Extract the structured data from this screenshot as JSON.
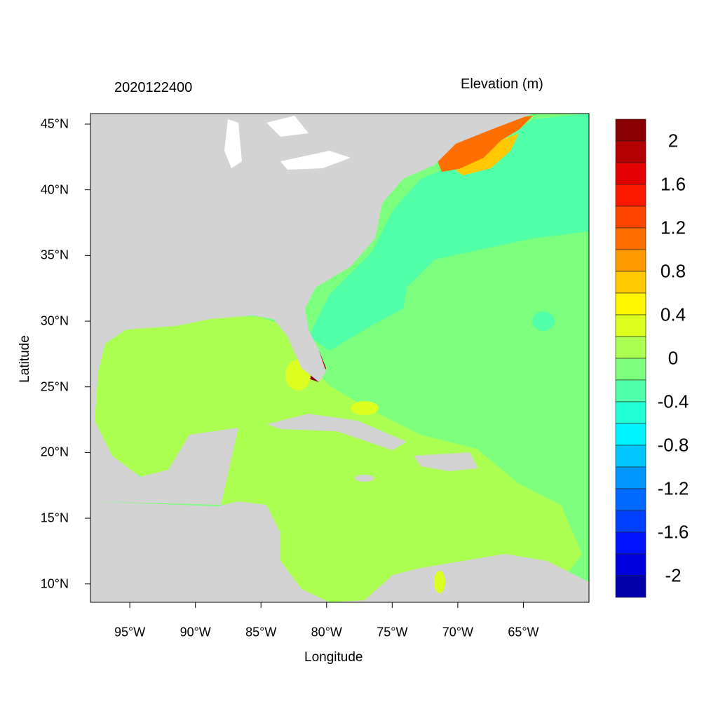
{
  "chart_data": {
    "type": "heatmap",
    "title": "2020122400",
    "colorbar_title": "Elevation (m)",
    "xlabel": "Longitude",
    "ylabel": "Latitude",
    "xlim": [
      -98,
      -60
    ],
    "ylim": [
      8.6,
      45.8
    ],
    "x_ticks": [
      {
        "value": -95,
        "label": "95°W"
      },
      {
        "value": -90,
        "label": "90°W"
      },
      {
        "value": -85,
        "label": "85°W"
      },
      {
        "value": -80,
        "label": "80°W"
      },
      {
        "value": -75,
        "label": "75°W"
      },
      {
        "value": -70,
        "label": "70°W"
      },
      {
        "value": -65,
        "label": "65°W"
      }
    ],
    "y_ticks": [
      {
        "value": 45,
        "label": "45°N"
      },
      {
        "value": 40,
        "label": "40°N"
      },
      {
        "value": 35,
        "label": "35°N"
      },
      {
        "value": 30,
        "label": "30°N"
      },
      {
        "value": 25,
        "label": "25°N"
      },
      {
        "value": 20,
        "label": "20°N"
      },
      {
        "value": 15,
        "label": "15°N"
      },
      {
        "value": 10,
        "label": "10°N"
      }
    ],
    "colorbar": {
      "range": [
        -2.2,
        2.2
      ],
      "step": 0.2,
      "labels": [
        {
          "value": 2,
          "label": "2"
        },
        {
          "value": 1.6,
          "label": "1.6"
        },
        {
          "value": 1.2,
          "label": "1.2"
        },
        {
          "value": 0.8,
          "label": "0.8"
        },
        {
          "value": 0.4,
          "label": "0.4"
        },
        {
          "value": 0,
          "label": "0"
        },
        {
          "value": -0.4,
          "label": "-0.4"
        },
        {
          "value": -0.8,
          "label": "-0.8"
        },
        {
          "value": -1.2,
          "label": "-1.2"
        },
        {
          "value": -1.6,
          "label": "-1.6"
        },
        {
          "value": -2,
          "label": "-2"
        }
      ],
      "colors_top_to_bottom": [
        "#8B0000",
        "#B40000",
        "#E40000",
        "#FF1800",
        "#FF4400",
        "#FF6E00",
        "#FF9A00",
        "#FFC800",
        "#FFF500",
        "#DCFF20",
        "#AAFF50",
        "#7CFF7C",
        "#50FFA8",
        "#22FFD6",
        "#00F4FF",
        "#00C8FF",
        "#0096FF",
        "#006AFF",
        "#0040FF",
        "#0012FF",
        "#0000DC",
        "#0000AA"
      ]
    },
    "land_color": "#D3D3D3"
  }
}
